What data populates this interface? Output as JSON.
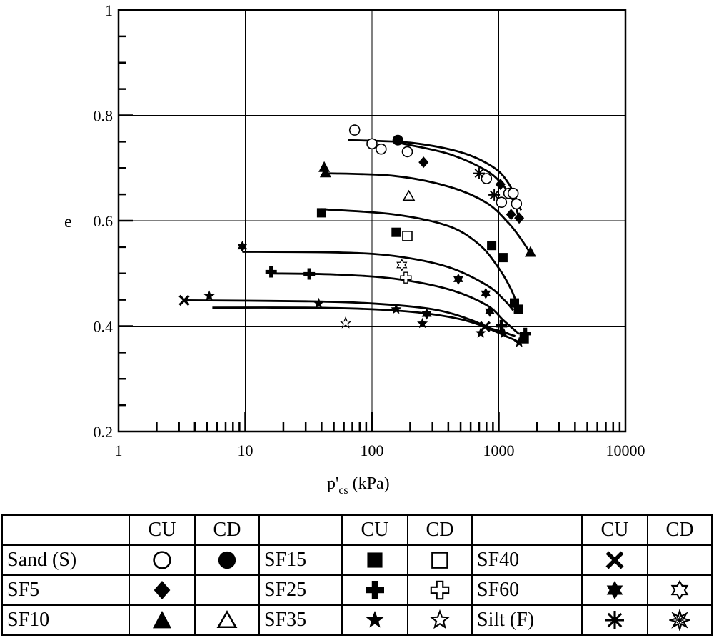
{
  "chart_data": {
    "type": "scatter",
    "title": "",
    "xlabel_main": "p'",
    "xlabel_sub": "cs",
    "xlabel_unit": " (kPa)",
    "ylabel": "e",
    "xscale": "log",
    "xlim": [
      1,
      10000
    ],
    "ylim": [
      0.2,
      1.0
    ],
    "grid": true,
    "x_ticks": [
      "1",
      "10",
      "100",
      "1000",
      "10000"
    ],
    "y_ticks": [
      "0.2",
      "0.4",
      "0.6",
      "0.8",
      "1"
    ],
    "series": [
      {
        "name": "Sand (S) CU",
        "marker": "circle-open",
        "points": [
          [
            73,
            0.772
          ],
          [
            100,
            0.746
          ],
          [
            118,
            0.736
          ],
          [
            190,
            0.731
          ],
          [
            800,
            0.68
          ],
          [
            1050,
            0.635
          ],
          [
            1200,
            0.652
          ],
          [
            1300,
            0.652
          ],
          [
            1380,
            0.632
          ]
        ]
      },
      {
        "name": "Sand (S) CD",
        "marker": "circle-filled",
        "points": [
          [
            160,
            0.753
          ]
        ]
      },
      {
        "name": "SF5 CU",
        "marker": "diamond-filled",
        "points": [
          [
            255,
            0.711
          ],
          [
            1030,
            0.669
          ],
          [
            1250,
            0.612
          ],
          [
            1450,
            0.605
          ]
        ]
      },
      {
        "name": "SF10 CU",
        "marker": "triangle-filled",
        "points": [
          [
            42,
            0.702
          ],
          [
            43,
            0.692
          ],
          [
            1780,
            0.541
          ]
        ]
      },
      {
        "name": "SF10 CD",
        "marker": "triangle-open",
        "points": [
          [
            195,
            0.647
          ]
        ]
      },
      {
        "name": "SF15 CU",
        "marker": "square-filled",
        "points": [
          [
            40,
            0.615
          ],
          [
            155,
            0.578
          ],
          [
            880,
            0.553
          ],
          [
            1080,
            0.53
          ],
          [
            1330,
            0.444
          ],
          [
            1430,
            0.432
          ],
          [
            1590,
            0.376
          ]
        ]
      },
      {
        "name": "SF15 CD",
        "marker": "square-open",
        "points": [
          [
            190,
            0.571
          ]
        ]
      },
      {
        "name": "SF25 CU",
        "marker": "plus-filled",
        "points": [
          [
            16,
            0.503
          ],
          [
            32,
            0.499
          ],
          [
            1050,
            0.401
          ],
          [
            1620,
            0.386
          ]
        ]
      },
      {
        "name": "SF25 CD",
        "marker": "plus-open",
        "points": [
          [
            185,
            0.492
          ]
        ]
      },
      {
        "name": "SF35 CU",
        "marker": "star-filled",
        "points": [
          [
            5.2,
            0.457
          ],
          [
            38,
            0.443
          ],
          [
            155,
            0.432
          ],
          [
            250,
            0.405
          ],
          [
            720,
            0.387
          ],
          [
            1100,
            0.386
          ],
          [
            1450,
            0.369
          ]
        ]
      },
      {
        "name": "SF35 CD",
        "marker": "star-open",
        "points": [
          [
            62,
            0.406
          ]
        ]
      },
      {
        "name": "SF40 CU",
        "marker": "x",
        "points": [
          [
            3.3,
            0.449
          ],
          [
            780,
            0.399
          ]
        ]
      },
      {
        "name": "SF60 CU",
        "marker": "hexstar-filled",
        "points": [
          [
            9.5,
            0.551
          ],
          [
            270,
            0.423
          ],
          [
            480,
            0.489
          ],
          [
            790,
            0.462
          ],
          [
            850,
            0.428
          ]
        ]
      },
      {
        "name": "SF60 CD",
        "marker": "hexstar-open",
        "points": [
          [
            172,
            0.516
          ]
        ]
      },
      {
        "name": "Silt (F) CU",
        "marker": "asterisk",
        "points": [
          [
            700,
            0.69
          ],
          [
            920,
            0.649
          ]
        ]
      }
    ],
    "trend_curves": [
      {
        "points": [
          [
            65,
            0.753
          ],
          [
            200,
            0.748
          ],
          [
            500,
            0.73
          ],
          [
            900,
            0.702
          ],
          [
            1200,
            0.67
          ],
          [
            1500,
            0.62
          ]
        ]
      },
      {
        "points": [
          [
            160,
            0.748
          ],
          [
            400,
            0.727
          ],
          [
            800,
            0.695
          ],
          [
            1100,
            0.665
          ],
          [
            1300,
            0.638
          ],
          [
            1450,
            0.605
          ]
        ]
      },
      {
        "points": [
          [
            44,
            0.69
          ],
          [
            150,
            0.685
          ],
          [
            400,
            0.665
          ],
          [
            800,
            0.634
          ],
          [
            1200,
            0.595
          ],
          [
            1500,
            0.565
          ],
          [
            1780,
            0.538
          ]
        ]
      },
      {
        "points": [
          [
            40,
            0.622
          ],
          [
            150,
            0.612
          ],
          [
            400,
            0.59
          ],
          [
            700,
            0.555
          ],
          [
            1000,
            0.51
          ],
          [
            1250,
            0.47
          ],
          [
            1400,
            0.44
          ]
        ]
      },
      {
        "points": [
          [
            9.5,
            0.541
          ],
          [
            50,
            0.54
          ],
          [
            150,
            0.533
          ],
          [
            400,
            0.512
          ],
          [
            800,
            0.478
          ],
          [
            1100,
            0.45
          ],
          [
            1300,
            0.43
          ]
        ]
      },
      {
        "points": [
          [
            16,
            0.5
          ],
          [
            50,
            0.498
          ],
          [
            150,
            0.49
          ],
          [
            400,
            0.47
          ],
          [
            800,
            0.44
          ],
          [
            1100,
            0.41
          ],
          [
            1450,
            0.385
          ]
        ]
      },
      {
        "points": [
          [
            3.3,
            0.449
          ],
          [
            30,
            0.447
          ],
          [
            100,
            0.443
          ],
          [
            300,
            0.432
          ],
          [
            600,
            0.412
          ],
          [
            900,
            0.392
          ],
          [
            1300,
            0.375
          ],
          [
            1450,
            0.369
          ]
        ]
      },
      {
        "points": [
          [
            5.5,
            0.435
          ],
          [
            30,
            0.435
          ],
          [
            100,
            0.432
          ],
          [
            250,
            0.425
          ],
          [
            500,
            0.413
          ],
          [
            800,
            0.398
          ],
          [
            1100,
            0.388
          ],
          [
            1350,
            0.381
          ]
        ]
      }
    ]
  },
  "legend": {
    "header": [
      "",
      "CU",
      "CD",
      "",
      "CU",
      "CD",
      "",
      "CU",
      "CD"
    ],
    "rows": [
      {
        "c1": "Sand (S)",
        "c1_cu": "circle-open",
        "c1_cd": "circle-filled",
        "c2": "SF15",
        "c2_cu": "square-filled",
        "c2_cd": "square-open",
        "c3": "SF40",
        "c3_cu": "x",
        "c3_cd": ""
      },
      {
        "c1": "SF5",
        "c1_cu": "diamond-filled",
        "c1_cd": "",
        "c2": "SF25",
        "c2_cu": "plus-filled",
        "c2_cd": "plus-open",
        "c3": "SF60",
        "c3_cu": "hexstar-filled",
        "c3_cd": "hexstar-open"
      },
      {
        "c1": "SF10",
        "c1_cu": "triangle-filled",
        "c1_cd": "triangle-open",
        "c2": "SF35",
        "c2_cu": "star-filled",
        "c2_cd": "star-open",
        "c3": "Silt (F)",
        "c3_cu": "asterisk",
        "c3_cd": "asterisk-open"
      }
    ]
  }
}
